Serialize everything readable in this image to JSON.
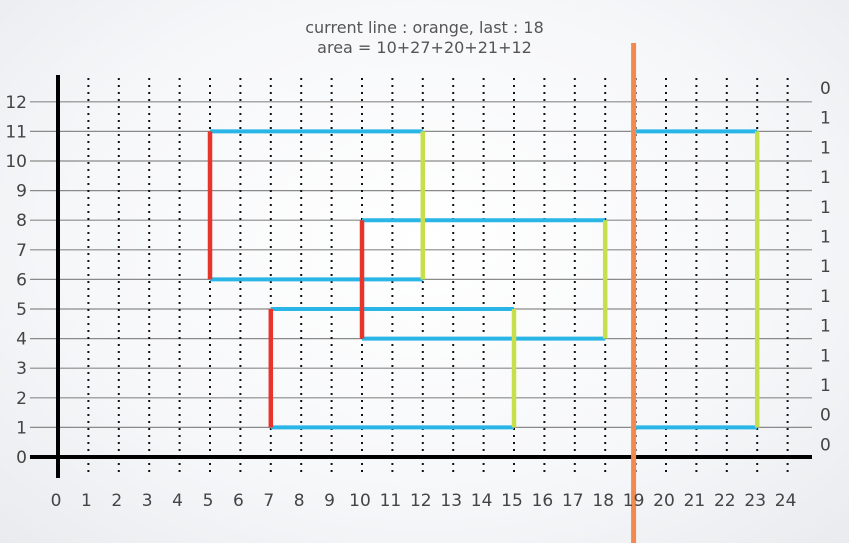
{
  "title": {
    "line1": "current line : orange, last : 18",
    "line2": "area = 10+27+20+21+12"
  },
  "chart_data": {
    "type": "diagram",
    "x_ticks": [
      0,
      1,
      2,
      3,
      4,
      5,
      6,
      7,
      8,
      9,
      10,
      11,
      12,
      13,
      14,
      15,
      16,
      17,
      18,
      19,
      20,
      21,
      22,
      23,
      24
    ],
    "y_ticks": [
      0,
      1,
      2,
      3,
      4,
      5,
      6,
      7,
      8,
      9,
      10,
      11,
      12
    ],
    "xlim": [
      0,
      24
    ],
    "ylim": [
      0,
      12
    ],
    "right_counts": [
      "0",
      "1",
      "1",
      "1",
      "1",
      "1",
      "1",
      "1",
      "1",
      "1",
      "1",
      "0",
      "0"
    ],
    "horizontal_edges_color": "#29b6e6",
    "left_edge_color": "#e8352b",
    "right_edge_color": "#c6df4b",
    "sweep_line_color": "#f28a50",
    "sweep_line_x": 19,
    "rectangles": [
      {
        "x1": 5,
        "x2": 12,
        "y1": 6,
        "y2": 11
      },
      {
        "x1": 10,
        "x2": 18,
        "y1": 4,
        "y2": 8
      },
      {
        "x1": 7,
        "x2": 15,
        "y1": 1,
        "y2": 5
      },
      {
        "x1": 19,
        "x2": 23,
        "y1": 1,
        "y2": 11
      }
    ],
    "horizontal_segments": [
      {
        "x1": 5,
        "x2": 12,
        "y": 11
      },
      {
        "x1": 5,
        "x2": 12,
        "y": 6
      },
      {
        "x1": 10,
        "x2": 18,
        "y": 8
      },
      {
        "x1": 10,
        "x2": 18,
        "y": 4
      },
      {
        "x1": 7,
        "x2": 15,
        "y": 5
      },
      {
        "x1": 7,
        "x2": 15,
        "y": 1
      },
      {
        "x1": 19,
        "x2": 23,
        "y": 11
      },
      {
        "x1": 19,
        "x2": 23,
        "y": 1
      }
    ],
    "left_edges": [
      {
        "x": 5,
        "y1": 6,
        "y2": 11
      },
      {
        "x": 10,
        "y1": 4,
        "y2": 8
      },
      {
        "x": 7,
        "y1": 1,
        "y2": 5
      }
    ],
    "right_edges": [
      {
        "x": 12,
        "y1": 6,
        "y2": 11
      },
      {
        "x": 18,
        "y1": 4,
        "y2": 8
      },
      {
        "x": 15,
        "y1": 1,
        "y2": 5
      },
      {
        "x": 23,
        "y1": 1,
        "y2": 11
      }
    ]
  }
}
